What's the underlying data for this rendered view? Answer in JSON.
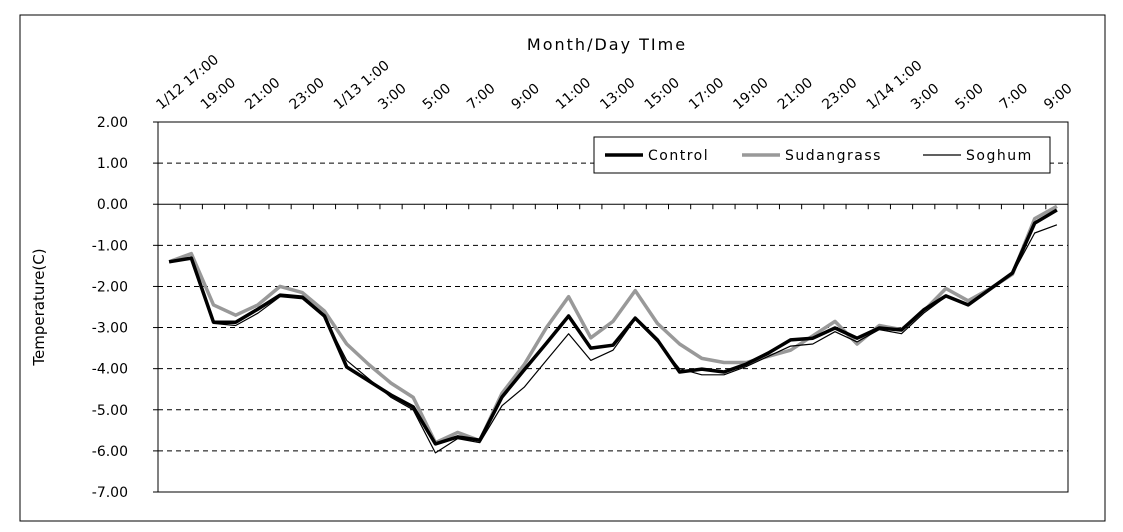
{
  "chart_data": {
    "type": "line",
    "title": "Month/Day TIme",
    "y_label": "Temperature(C)",
    "categories": [
      "1/12 17:00",
      null,
      "19:00",
      null,
      "21:00",
      null,
      "23:00",
      null,
      "1/13 1:00",
      null,
      "3:00",
      null,
      "5:00",
      null,
      "7:00",
      null,
      "9:00",
      null,
      "11:00",
      null,
      "13:00",
      null,
      "15:00",
      null,
      "17:00",
      null,
      "19:00",
      null,
      "21:00",
      null,
      "23:00",
      null,
      "1/14 1:00",
      null,
      "3:00",
      null,
      "5:00",
      null,
      "7:00",
      null,
      "9:00"
    ],
    "series": [
      {
        "name": "Control",
        "color": "#000000",
        "width": 3.5,
        "values": [
          -1.4,
          -1.31,
          -2.87,
          -2.87,
          -2.55,
          -2.21,
          -2.26,
          -2.72,
          -3.96,
          -4.3,
          -4.64,
          -4.93,
          -5.83,
          -5.66,
          -5.74,
          -4.69,
          -4.03,
          -3.38,
          -2.72,
          -3.5,
          -3.43,
          -2.77,
          -3.3,
          -4.08,
          -4.01,
          -4.08,
          -3.89,
          -3.62,
          -3.3,
          -3.26,
          -3.01,
          -3.26,
          -3.01,
          -3.06,
          -2.57,
          -2.23,
          -2.45,
          -2.06,
          -1.67,
          -0.46,
          -0.14
        ]
      },
      {
        "name": "Sudangrass",
        "color": "#999999",
        "width": 3.5,
        "values": [
          -1.4,
          -1.2,
          -2.45,
          -2.7,
          -2.45,
          -2.0,
          -2.15,
          -2.6,
          -3.4,
          -3.9,
          -4.35,
          -4.7,
          -5.8,
          -5.55,
          -5.75,
          -4.6,
          -3.9,
          -3.0,
          -2.25,
          -3.25,
          -2.85,
          -2.1,
          -2.9,
          -3.4,
          -3.75,
          -3.85,
          -3.85,
          -3.7,
          -3.55,
          -3.2,
          -2.85,
          -3.4,
          -2.95,
          -3.05,
          -2.6,
          -2.05,
          -2.35,
          -2.05,
          -1.7,
          -0.35,
          -0.05
        ]
      },
      {
        "name": "Soghum",
        "color": "#000000",
        "width": 1.2,
        "values": [
          -1.4,
          -1.3,
          -2.9,
          -2.95,
          -2.65,
          -2.25,
          -2.3,
          -2.75,
          -3.8,
          -4.25,
          -4.7,
          -5.0,
          -6.05,
          -5.7,
          -5.8,
          -4.9,
          -4.45,
          -3.8,
          -3.15,
          -3.8,
          -3.55,
          -2.8,
          -3.35,
          -4.0,
          -4.15,
          -4.15,
          -3.95,
          -3.7,
          -3.45,
          -3.4,
          -3.1,
          -3.35,
          -3.05,
          -3.15,
          -2.65,
          -2.25,
          -2.45,
          -2.05,
          -1.7,
          -0.7,
          -0.5
        ]
      }
    ],
    "ylim": [
      -7,
      2
    ],
    "yticks": [
      {
        "value": -7,
        "label": "-7.00"
      },
      {
        "value": -6,
        "label": "-6.00"
      },
      {
        "value": -5,
        "label": "-5.00"
      },
      {
        "value": -4,
        "label": "-4.00"
      },
      {
        "value": -3,
        "label": "-3.00"
      },
      {
        "value": -2,
        "label": "-2.00"
      },
      {
        "value": -1,
        "label": "-1.00"
      },
      {
        "value": 0,
        "label": "0.00"
      },
      {
        "value": 1,
        "label": "1.00"
      },
      {
        "value": 2,
        "label": "2.00"
      }
    ],
    "grid": true,
    "legend": "top-right"
  }
}
